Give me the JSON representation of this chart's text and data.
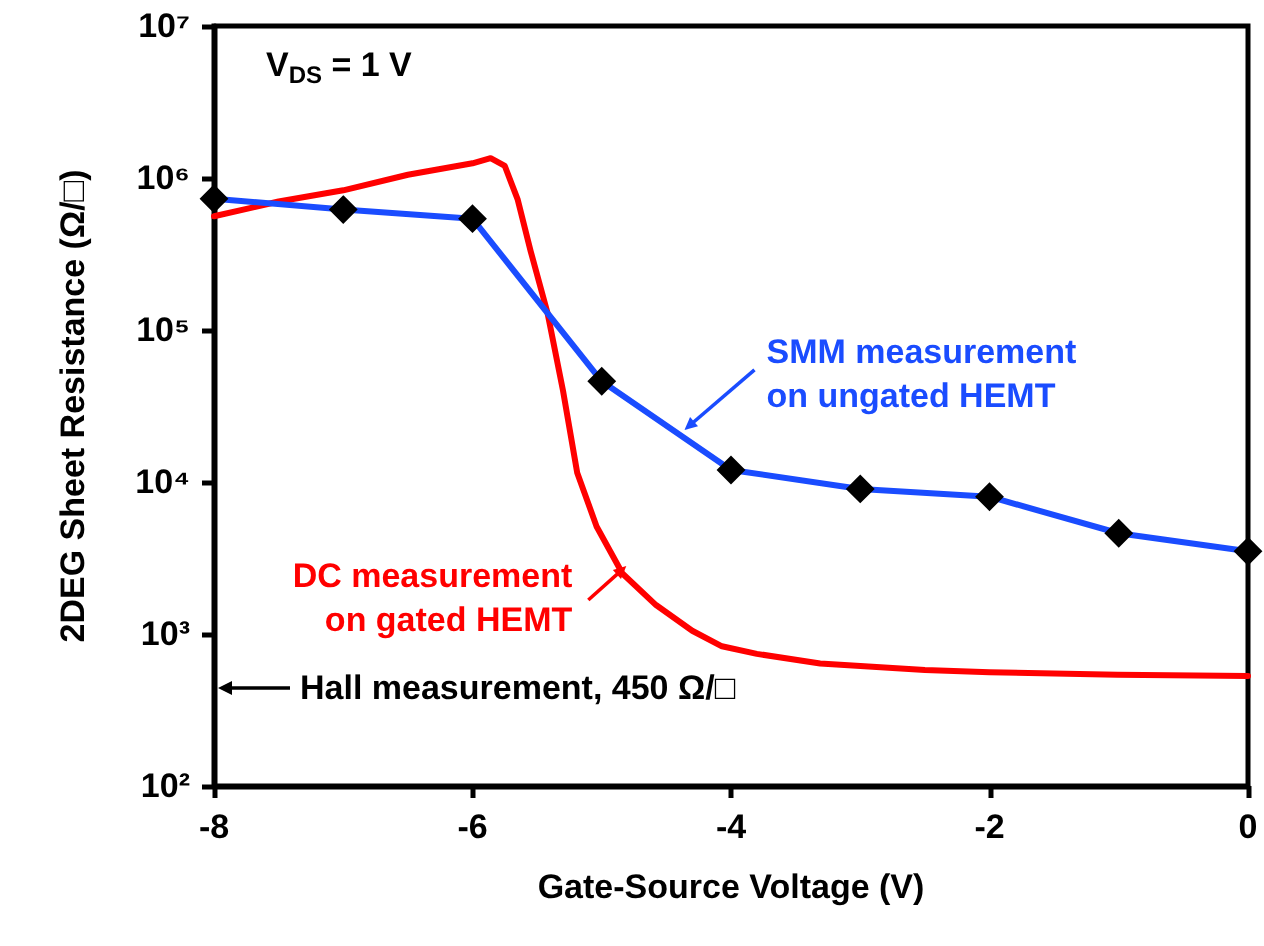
{
  "chart_data": {
    "type": "line",
    "xlabel": "Gate-Source Voltage (V)",
    "ylabel": "2DEG Sheet Resistance (Ω/□)",
    "xlim": [
      -8,
      0
    ],
    "xticks": [
      -8,
      -6,
      -4,
      -2,
      0
    ],
    "ylim": [
      100,
      10000000
    ],
    "yticks": [
      {
        "value": 100,
        "label": "10²"
      },
      {
        "value": 1000,
        "label": "10³"
      },
      {
        "value": 10000,
        "label": "10⁴"
      },
      {
        "value": 100000,
        "label": "10⁵"
      },
      {
        "value": 1000000,
        "label": "10⁶"
      },
      {
        "value": 10000000,
        "label": "10⁷"
      }
    ],
    "log": "y",
    "grid": false,
    "series": [
      {
        "color": "#ff0000",
        "marker": "none",
        "x": [
          -8,
          -7.5,
          -7,
          -6.5,
          -6,
          -5.86,
          -5.75,
          -5.65,
          -5.55,
          -5.42,
          -5.3,
          -5.19,
          -5.04,
          -4.84,
          -4.58,
          -4.3,
          -4.07,
          -3.8,
          -3.31,
          -2.5,
          -2,
          -1.01,
          0
        ],
        "values": [
          560000,
          700000,
          830000,
          1050000,
          1250000,
          1350000,
          1200000,
          720000,
          330000,
          130000,
          40000,
          11500,
          5100,
          2500,
          1550,
          1050,
          830,
          740,
          640,
          580,
          560,
          540,
          530
        ]
      },
      {
        "color": "#1a4cff",
        "marker": "diamond",
        "x": [
          -8,
          -7,
          -6,
          -5,
          -4,
          -3,
          -2,
          -1,
          0
        ],
        "values": [
          730000,
          620000,
          540000,
          46000,
          12000,
          9000,
          8000,
          4600,
          3500
        ]
      }
    ],
    "annotations": [
      "V$_{DS}$ = 1 V",
      {
        "text": "SMM measurement\non ungated HEMT",
        "x": -4.36,
        "y": 22000
      },
      {
        "text": "DC measurement\non gated HEMT",
        "x": -4.81,
        "y": 2800
      },
      "Hall measurement, 450 Ω/□"
    ]
  }
}
